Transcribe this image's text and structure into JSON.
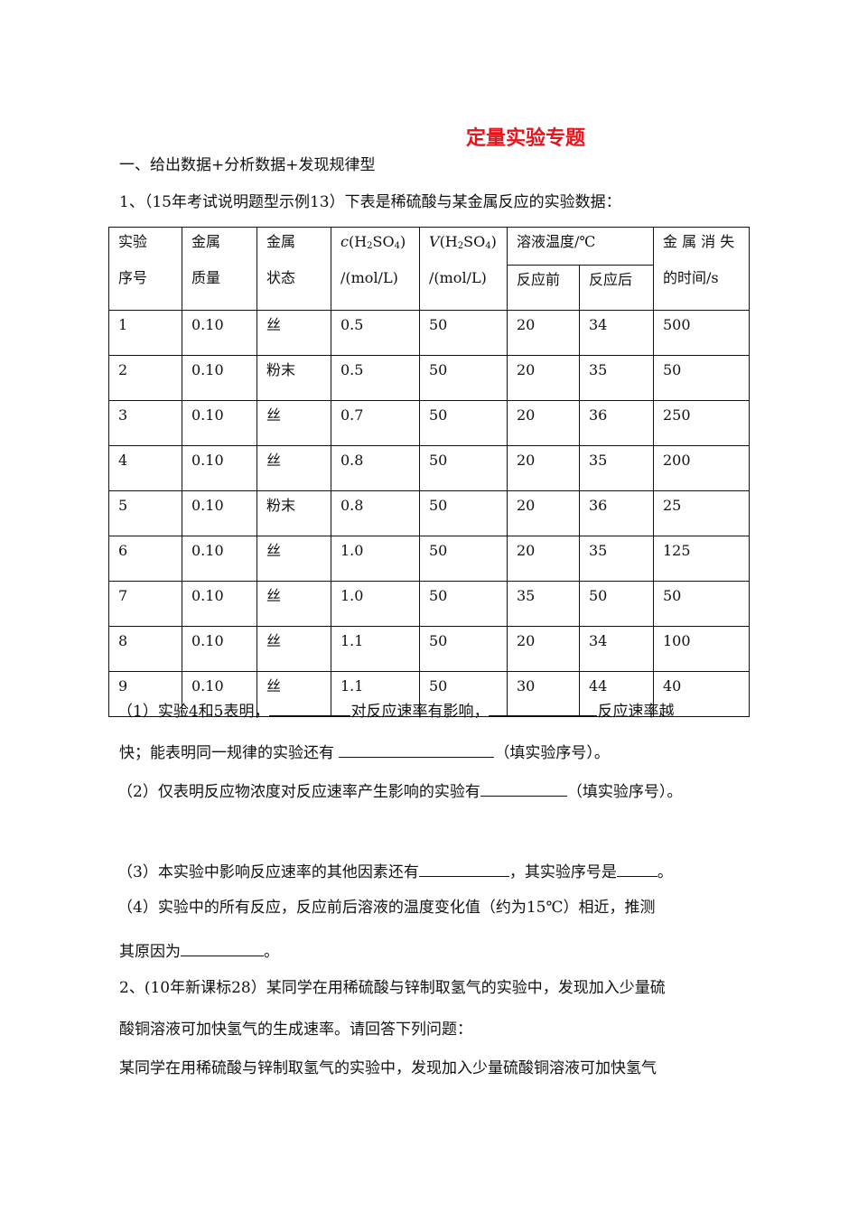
{
  "title": "定量实验专题",
  "section1": "一、给出数据+分析数据+发现规律型",
  "q1_intro": "1、（15年考试说明题型示例13）下表是稀硫酸与某金属反应的实验数据：",
  "table": {
    "headers": {
      "seq": [
        "实验",
        "序号"
      ],
      "mass": [
        "金属",
        "质量"
      ],
      "state": [
        "金属",
        "状态"
      ],
      "conc": {
        "var": "c",
        "formula_pre": "(H",
        "sub1": "2",
        "mid": "SO",
        "sub2": "4",
        "post": ")",
        "unit": "/(mol/L)"
      },
      "vol": {
        "var": "V",
        "formula_pre": "(H",
        "sub1": "2",
        "mid": "SO",
        "sub2": "4",
        "post": ")",
        "unit": "/(mol/L)"
      },
      "temp": "溶液温度/℃",
      "temp_before": "反应前",
      "temp_after": "反应后",
      "time": [
        "金 属 消 失",
        "的时间/s"
      ]
    },
    "rows": [
      [
        "1",
        "0.10",
        "丝",
        "0.5",
        "50",
        "20",
        "34",
        "500"
      ],
      [
        "2",
        "0.10",
        "粉末",
        "0.5",
        "50",
        "20",
        "35",
        "50"
      ],
      [
        "3",
        "0.10",
        "丝",
        "0.7",
        "50",
        "20",
        "36",
        "250"
      ],
      [
        "4",
        "0.10",
        "丝",
        "0.8",
        "50",
        "20",
        "35",
        "200"
      ],
      [
        "5",
        "0.10",
        "粉末",
        "0.8",
        "50",
        "20",
        "36",
        "25"
      ],
      [
        "6",
        "0.10",
        "丝",
        "1.0",
        "50",
        "20",
        "35",
        "125"
      ],
      [
        "7",
        "0.10",
        "丝",
        "1.0",
        "50",
        "35",
        "50",
        "50"
      ],
      [
        "8",
        "0.10",
        "丝",
        "1.1",
        "50",
        "20",
        "34",
        "100"
      ],
      [
        "9",
        "0.10",
        "丝",
        "1.1",
        "50",
        "30",
        "44",
        "40"
      ]
    ]
  },
  "questions": {
    "q1a": [
      "（1）实验4和5表明，",
      "对反应速率有影响，",
      "反应速率越"
    ],
    "q1b": [
      "快；能表明同一规律的实验还有 ",
      "（填实验序号）。"
    ],
    "q2": [
      "（2）仅表明反应物浓度对反应速率产生影响的实验有",
      "（填实验序号）。"
    ],
    "q3": [
      "（3）本实验中影响反应速率的其他因素还有",
      "，其实验序号是",
      "。"
    ],
    "q4a": "（4）实验中的所有反应，反应前后溶液的温度变化值（约为15℃）相近，推测",
    "q4b": [
      "其原因为",
      "。"
    ]
  },
  "q2_intro_line1": "2、(10年新课标28）某同学在用稀硫酸与锌制取氢气的实验中，发现加入少量硫",
  "q2_intro_line2": "酸铜溶液可加快氢气的生成速率。请回答下列问题：",
  "q2_intro_line3": "某同学在用稀硫酸与锌制取氢气的实验中，发现加入少量硫酸铜溶液可加快氢气"
}
